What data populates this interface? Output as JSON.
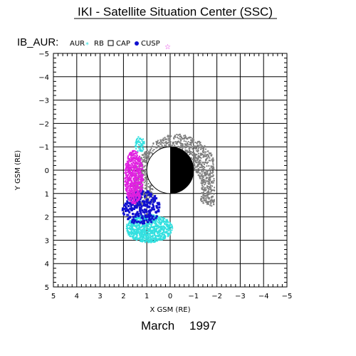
{
  "title": "IKI - Satellite Situation Center (SSC)",
  "mode_label": "IB_AUR:",
  "date_month": "March",
  "date_year": "1997",
  "chart_data": {
    "type": "scatter",
    "xlabel": "X GSM (RE)",
    "ylabel": "Y GSM (RE)",
    "xlim": [
      5,
      -5
    ],
    "ylim": [
      -5,
      5
    ],
    "x_ticks": [
      "5",
      "4",
      "3",
      "2",
      "1",
      "0",
      "−1",
      "−2",
      "−3",
      "−4",
      "−5"
    ],
    "y_ticks": [
      "−5",
      "−4",
      "−3",
      "−2",
      "−1",
      "0",
      "1",
      "2",
      "3",
      "4",
      "5"
    ],
    "grid": true,
    "legend_placement": "top-left",
    "series": [
      {
        "name": "AUR",
        "color": "#7f7f7f",
        "marker": "dot",
        "region": {
          "center": [
            0.1,
            1.0
          ],
          "radii": [
            1.9,
            2.1
          ],
          "angle_range": [
            -110,
            110
          ],
          "side": "nightside"
        }
      },
      {
        "name": "RB",
        "color": "#33e0e0",
        "marker": "asterisk",
        "region": {
          "center": [
            0.9,
            2.4
          ],
          "radii": [
            1.0,
            0.55
          ]
        }
      },
      {
        "name": "CAP",
        "color": "#000000",
        "marker": "square",
        "region": null
      },
      {
        "name": "CUSP",
        "color": "#1010d0",
        "marker": "dot",
        "region": {
          "center": [
            1.2,
            1.7
          ],
          "radii": [
            0.9,
            0.7
          ]
        }
      },
      {
        "name": "",
        "color": "#e020e0",
        "marker": "star",
        "region": {
          "center": [
            1.6,
            0.3
          ],
          "radii": [
            0.45,
            1.2
          ]
        }
      }
    ],
    "earth": {
      "radius_re": 1,
      "day_side": "white",
      "night_side": "black"
    }
  }
}
